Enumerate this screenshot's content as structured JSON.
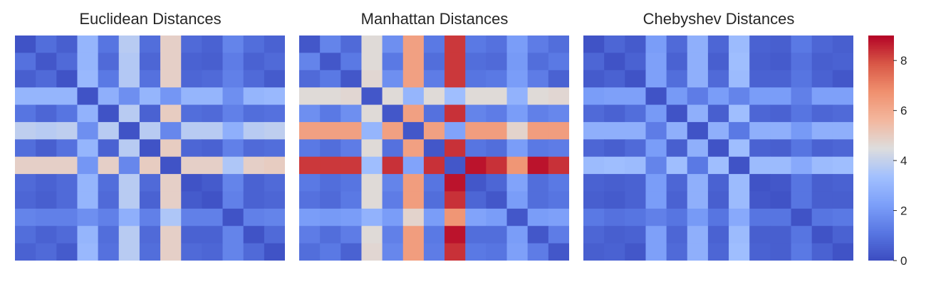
{
  "chart_data": [
    {
      "type": "heatmap",
      "title": "Euclidean Distances",
      "vmin": 0,
      "vmax": 9,
      "values": [
        [
          0.2,
          0.9,
          0.5,
          3.0,
          1.1,
          3.8,
          0.9,
          4.9,
          0.8,
          0.6,
          1.5,
          0.9,
          0.6
        ],
        [
          1.0,
          0.3,
          0.8,
          3.0,
          0.8,
          3.7,
          0.7,
          4.9,
          0.6,
          0.5,
          1.3,
          0.6,
          0.8
        ],
        [
          0.5,
          0.8,
          0.2,
          3.1,
          1.2,
          3.7,
          1.0,
          4.9,
          0.7,
          0.8,
          1.4,
          0.8,
          0.4
        ],
        [
          3.0,
          3.0,
          3.0,
          0.2,
          2.8,
          1.8,
          3.0,
          2.0,
          3.0,
          3.0,
          1.8,
          3.0,
          3.1
        ],
        [
          1.1,
          0.7,
          1.1,
          2.9,
          0.2,
          3.8,
          0.6,
          5.0,
          0.9,
          0.8,
          1.4,
          0.9,
          1.0
        ],
        [
          3.9,
          3.8,
          3.9,
          1.8,
          3.8,
          0.2,
          3.8,
          1.6,
          3.8,
          3.8,
          2.8,
          3.8,
          3.9
        ],
        [
          0.9,
          0.5,
          1.0,
          3.0,
          0.6,
          3.8,
          0.2,
          5.0,
          0.7,
          0.6,
          1.4,
          0.8,
          0.9
        ],
        [
          4.9,
          4.9,
          4.9,
          2.0,
          4.9,
          1.6,
          5.0,
          0.2,
          4.9,
          4.9,
          3.6,
          4.9,
          5.0
        ],
        [
          0.8,
          0.6,
          0.8,
          3.0,
          0.9,
          3.8,
          0.8,
          4.9,
          0.2,
          0.4,
          1.5,
          0.6,
          0.8
        ],
        [
          0.7,
          0.5,
          0.8,
          3.0,
          0.8,
          3.8,
          0.6,
          4.9,
          0.4,
          0.2,
          1.4,
          0.6,
          0.7
        ],
        [
          1.5,
          1.4,
          1.4,
          1.8,
          1.4,
          2.8,
          1.4,
          3.6,
          1.4,
          1.4,
          0.2,
          1.4,
          1.5
        ],
        [
          0.9,
          0.6,
          0.8,
          3.0,
          0.9,
          3.8,
          0.8,
          4.9,
          0.6,
          0.6,
          1.5,
          0.2,
          0.8
        ],
        [
          0.6,
          0.8,
          0.4,
          3.1,
          1.0,
          3.8,
          0.9,
          4.9,
          0.8,
          0.7,
          1.5,
          0.8,
          0.2
        ]
      ]
    },
    {
      "type": "heatmap",
      "title": "Manhattan Distances",
      "vmin": 0,
      "vmax": 9,
      "values": [
        [
          0.3,
          1.5,
          0.8,
          4.6,
          1.8,
          6.3,
          1.2,
          8.3,
          1.2,
          1.0,
          2.2,
          1.3,
          0.9
        ],
        [
          1.5,
          0.3,
          1.2,
          4.6,
          1.2,
          6.3,
          0.9,
          8.3,
          0.9,
          0.8,
          2.1,
          0.9,
          1.2
        ],
        [
          0.8,
          1.2,
          0.3,
          4.7,
          1.8,
          6.3,
          1.3,
          8.3,
          1.1,
          1.2,
          2.2,
          1.3,
          0.6
        ],
        [
          4.6,
          4.6,
          4.7,
          0.3,
          4.6,
          3.0,
          4.6,
          3.3,
          4.6,
          4.6,
          2.9,
          4.6,
          4.7
        ],
        [
          1.8,
          1.2,
          1.8,
          4.6,
          0.3,
          6.3,
          1.0,
          8.4,
          1.5,
          1.3,
          2.2,
          1.4,
          1.6
        ],
        [
          6.3,
          6.3,
          6.3,
          3.0,
          6.3,
          0.3,
          6.3,
          2.4,
          6.4,
          6.4,
          4.8,
          6.4,
          6.4
        ],
        [
          1.2,
          0.9,
          1.3,
          4.6,
          1.0,
          6.3,
          0.3,
          8.4,
          1.1,
          0.9,
          2.2,
          1.2,
          1.3
        ],
        [
          8.3,
          8.3,
          8.3,
          3.3,
          8.4,
          2.4,
          8.4,
          0.3,
          8.8,
          8.4,
          6.6,
          8.8,
          8.4
        ],
        [
          1.2,
          0.9,
          1.1,
          4.6,
          1.5,
          6.4,
          1.1,
          8.8,
          0.3,
          0.7,
          2.4,
          0.9,
          1.2
        ],
        [
          1.0,
          0.8,
          1.2,
          4.6,
          1.3,
          6.4,
          0.9,
          8.4,
          0.7,
          0.3,
          2.2,
          0.9,
          1.1
        ],
        [
          2.2,
          2.1,
          2.2,
          2.9,
          2.2,
          4.8,
          2.2,
          6.6,
          2.4,
          2.2,
          0.3,
          2.2,
          2.3
        ],
        [
          1.3,
          0.9,
          1.3,
          4.6,
          1.4,
          6.4,
          1.2,
          8.8,
          0.9,
          0.9,
          2.2,
          0.3,
          1.3
        ],
        [
          0.9,
          1.2,
          0.6,
          4.7,
          1.6,
          6.4,
          1.3,
          8.4,
          1.2,
          1.1,
          2.3,
          1.3,
          0.3
        ]
      ]
    },
    {
      "type": "heatmap",
      "title": "Chebyshev Distances",
      "vmin": 0,
      "vmax": 9,
      "values": [
        [
          0.2,
          0.7,
          0.4,
          2.2,
          0.8,
          2.8,
          0.7,
          3.2,
          0.6,
          0.5,
          1.2,
          0.7,
          0.5
        ],
        [
          0.7,
          0.2,
          0.6,
          2.3,
          0.6,
          2.8,
          0.5,
          3.3,
          0.5,
          0.4,
          1.0,
          0.5,
          0.6
        ],
        [
          0.4,
          0.6,
          0.2,
          2.3,
          0.9,
          2.8,
          0.8,
          3.2,
          0.6,
          0.6,
          1.1,
          0.6,
          0.3
        ],
        [
          2.2,
          2.3,
          2.3,
          0.2,
          2.1,
          1.3,
          2.2,
          1.5,
          2.2,
          2.2,
          1.4,
          2.3,
          2.3
        ],
        [
          0.8,
          0.6,
          0.9,
          2.1,
          0.2,
          2.8,
          0.5,
          3.3,
          0.7,
          0.6,
          1.1,
          0.7,
          0.8
        ],
        [
          2.8,
          2.8,
          2.8,
          1.3,
          2.8,
          0.2,
          2.8,
          1.2,
          2.8,
          2.8,
          2.1,
          2.8,
          2.8
        ],
        [
          0.7,
          0.5,
          0.8,
          2.2,
          0.5,
          2.8,
          0.2,
          3.3,
          0.6,
          0.5,
          1.1,
          0.6,
          0.7
        ],
        [
          3.2,
          3.3,
          3.2,
          1.5,
          3.3,
          1.2,
          3.3,
          0.2,
          3.2,
          3.2,
          2.6,
          3.2,
          3.3
        ],
        [
          0.6,
          0.5,
          0.6,
          2.2,
          0.7,
          2.8,
          0.6,
          3.2,
          0.2,
          0.3,
          1.1,
          0.5,
          0.6
        ],
        [
          0.5,
          0.4,
          0.6,
          2.2,
          0.6,
          2.8,
          0.5,
          3.2,
          0.3,
          0.2,
          1.1,
          0.5,
          0.5
        ],
        [
          1.2,
          1.0,
          1.1,
          1.4,
          1.1,
          2.1,
          1.1,
          2.6,
          1.1,
          1.1,
          0.2,
          1.1,
          1.2
        ],
        [
          0.7,
          0.5,
          0.6,
          2.3,
          0.7,
          2.8,
          0.6,
          3.2,
          0.5,
          0.5,
          1.1,
          0.2,
          0.6
        ],
        [
          0.5,
          0.6,
          0.3,
          2.3,
          0.8,
          2.8,
          0.7,
          3.3,
          0.6,
          0.5,
          1.2,
          0.6,
          0.2
        ]
      ]
    }
  ],
  "colorbar": {
    "colormap": "coolwarm",
    "min": 0,
    "max": 9,
    "ticks": [
      "0",
      "2",
      "4",
      "6",
      "8"
    ],
    "colors": [
      "#3b4cc0",
      "#b40426"
    ]
  }
}
